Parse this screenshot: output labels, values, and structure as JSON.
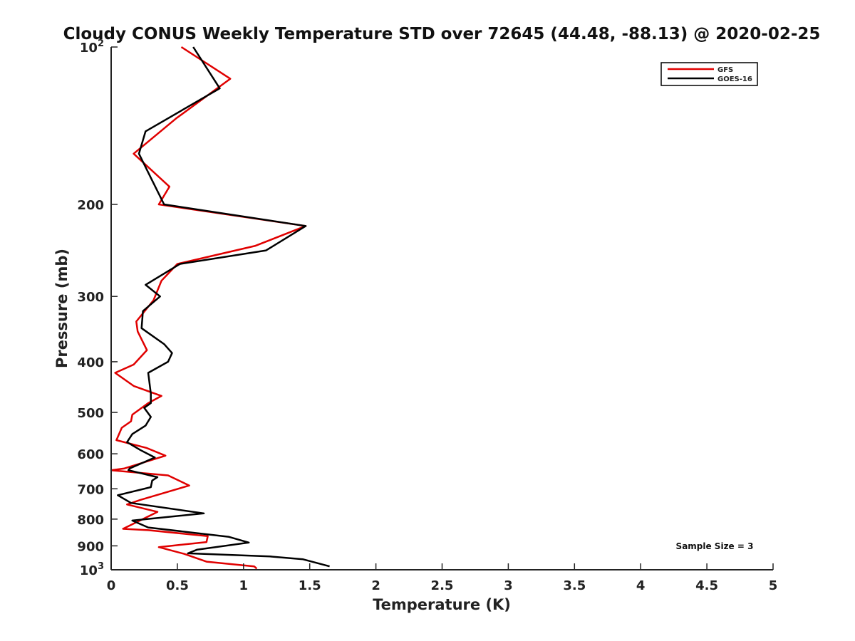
{
  "chart_data": {
    "type": "line",
    "title": "Cloudy CONUS Weekly Temperature STD over 72645 (44.48, -88.13) @ 2020-02-25",
    "xlabel": "Temperature (K)",
    "ylabel": "Pressure (mb)",
    "xlim": [
      0,
      5
    ],
    "ylim": [
      100,
      1000
    ],
    "y_scale": "log",
    "y_reversed": true,
    "x_ticks": [
      "0",
      "0.5",
      "1",
      "1.5",
      "2",
      "2.5",
      "3",
      "3.5",
      "4",
      "4.5",
      "5"
    ],
    "y_ticks": [
      {
        "value": 100,
        "base": "10",
        "exp": "2"
      },
      {
        "value": 200,
        "label": "200"
      },
      {
        "value": 300,
        "label": "300"
      },
      {
        "value": 400,
        "label": "400"
      },
      {
        "value": 500,
        "label": "500"
      },
      {
        "value": 600,
        "label": "600"
      },
      {
        "value": 700,
        "label": "700"
      },
      {
        "value": 800,
        "label": "800"
      },
      {
        "value": 900,
        "label": "900"
      },
      {
        "value": 1000,
        "base": "10",
        "exp": "3"
      }
    ],
    "grid": false,
    "legend_position": "top-right",
    "series": [
      {
        "name": "GFS",
        "color": "#e00000",
        "points": [
          [
            0.53,
            100
          ],
          [
            0.9,
            115
          ],
          [
            0.49,
            137
          ],
          [
            0.17,
            160
          ],
          [
            0.44,
            185
          ],
          [
            0.36,
            200
          ],
          [
            1.47,
            220
          ],
          [
            1.09,
            240
          ],
          [
            0.5,
            260
          ],
          [
            0.38,
            280
          ],
          [
            0.32,
            305
          ],
          [
            0.19,
            335
          ],
          [
            0.2,
            350
          ],
          [
            0.27,
            380
          ],
          [
            0.17,
            405
          ],
          [
            0.03,
            420
          ],
          [
            0.17,
            445
          ],
          [
            0.38,
            465
          ],
          [
            0.28,
            480
          ],
          [
            0.16,
            505
          ],
          [
            0.15,
            520
          ],
          [
            0.08,
            535
          ],
          [
            0.04,
            565
          ],
          [
            0.27,
            585
          ],
          [
            0.41,
            605
          ],
          [
            0.1,
            640
          ],
          [
            0.0,
            645
          ],
          [
            0.43,
            660
          ],
          [
            0.59,
            690
          ],
          [
            0.22,
            735
          ],
          [
            0.12,
            750
          ],
          [
            0.35,
            775
          ],
          [
            0.09,
            835
          ],
          [
            0.28,
            840
          ],
          [
            0.73,
            862
          ],
          [
            0.72,
            885
          ],
          [
            0.36,
            905
          ],
          [
            0.55,
            932
          ],
          [
            0.72,
            965
          ],
          [
            1.08,
            985
          ],
          [
            1.1,
            995
          ]
        ]
      },
      {
        "name": "GOES-16",
        "color": "#000000",
        "points": [
          [
            0.62,
            100
          ],
          [
            0.82,
            120
          ],
          [
            0.26,
            145
          ],
          [
            0.21,
            160
          ],
          [
            0.31,
            180
          ],
          [
            0.4,
            200
          ],
          [
            1.47,
            220
          ],
          [
            1.17,
            245
          ],
          [
            0.52,
            260
          ],
          [
            0.26,
            285
          ],
          [
            0.37,
            300
          ],
          [
            0.24,
            320
          ],
          [
            0.23,
            345
          ],
          [
            0.4,
            370
          ],
          [
            0.46,
            385
          ],
          [
            0.43,
            400
          ],
          [
            0.28,
            420
          ],
          [
            0.3,
            460
          ],
          [
            0.3,
            480
          ],
          [
            0.25,
            490
          ],
          [
            0.3,
            510
          ],
          [
            0.26,
            530
          ],
          [
            0.16,
            550
          ],
          [
            0.12,
            570
          ],
          [
            0.22,
            590
          ],
          [
            0.33,
            610
          ],
          [
            0.14,
            640
          ],
          [
            0.13,
            645
          ],
          [
            0.35,
            665
          ],
          [
            0.31,
            675
          ],
          [
            0.3,
            695
          ],
          [
            0.05,
            720
          ],
          [
            0.15,
            745
          ],
          [
            0.7,
            780
          ],
          [
            0.16,
            805
          ],
          [
            0.28,
            830
          ],
          [
            0.89,
            865
          ],
          [
            1.04,
            887
          ],
          [
            0.65,
            915
          ],
          [
            0.58,
            930
          ],
          [
            1.2,
            943
          ],
          [
            1.45,
            955
          ],
          [
            1.65,
            985
          ]
        ]
      }
    ],
    "annotation": "Sample Size = 3"
  }
}
